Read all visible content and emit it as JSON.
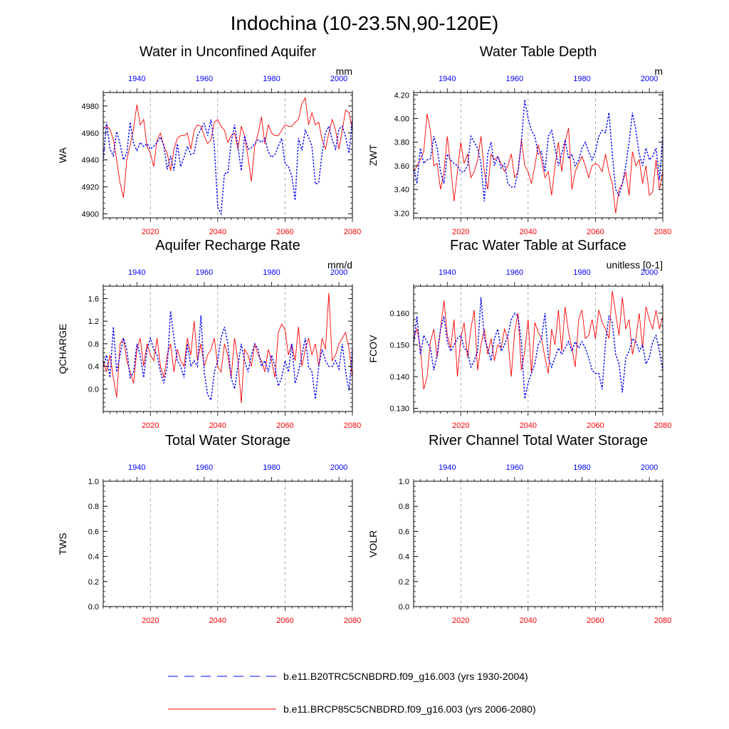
{
  "figure": {
    "title": "Indochina (10-23.5N,90-120E)",
    "colors": {
      "series_a": "#0000ff",
      "series_b": "#ff0000",
      "top_axis": "#0000ff",
      "bottom_axis": "#ff0000",
      "axis": "#000000",
      "vgrid": "#999999"
    },
    "legend": {
      "series_a_label": "b.e11.B20TRC5CNBDRD.f09_g16.003 (yrs 1930-2004)",
      "series_b_label": "b.e11.BRCP85C5CNBDRD.f09_g16.003 (yrs 2006-2080)"
    }
  },
  "chart_data": [
    {
      "id": "WA",
      "type": "line",
      "title": "Water in Unconfined Aquifer",
      "ylabel": "WA",
      "units": "mm",
      "ylim": [
        4897,
        4990
      ],
      "yticks": [
        4900,
        4920,
        4940,
        4960,
        4980
      ],
      "ytick_labels": [
        "4900",
        "4920",
        "4940",
        "4960",
        "4980"
      ],
      "x_bottom_ticks": [
        2020,
        2040,
        2060,
        2080
      ],
      "x_top_ticks": [
        1940,
        1960,
        1980,
        2000
      ],
      "xlim_bottom": [
        2006,
        2080
      ],
      "series_a_values": [
        4939,
        4968,
        4948,
        4943,
        4961,
        4952,
        4940,
        4945,
        4968,
        4952,
        4947,
        4953,
        4950,
        4952,
        4948,
        4950,
        4953,
        4957,
        4951,
        4933,
        4943,
        4932,
        4952,
        4935,
        4942,
        4950,
        4944,
        4945,
        4958,
        4963,
        4967,
        4958,
        4970,
        4950,
        4905,
        4900,
        4930,
        4930,
        4953,
        4966,
        4950,
        4932,
        4958,
        4948,
        4949,
        4952,
        4955,
        4953,
        4956,
        4946,
        4942,
        4944,
        4950,
        4956,
        4937,
        4935,
        4928,
        4910,
        4956,
        4947,
        4962,
        4957,
        4950,
        4922,
        4923,
        4945,
        4960,
        4965,
        4955,
        4948,
        4963,
        4965,
        4957,
        4945,
        4970
      ],
      "series_b_values": [
        4963,
        4965,
        4963,
        4955,
        4940,
        4923,
        4912,
        4940,
        4951,
        4963,
        4981,
        4966,
        4970,
        4950,
        4945,
        4935,
        4955,
        4960,
        4950,
        4945,
        4932,
        4948,
        4956,
        4958,
        4958,
        4960,
        4948,
        4962,
        4966,
        4965,
        4958,
        4952,
        4955,
        4968,
        4970,
        4965,
        4962,
        4953,
        4958,
        4960,
        4948,
        4965,
        4958,
        4942,
        4924,
        4950,
        4960,
        4972,
        4952,
        4966,
        4960,
        4958,
        4958,
        4962,
        4966,
        4965,
        4965,
        4968,
        4970,
        4982,
        4986,
        4966,
        4975,
        4966,
        4968,
        4955,
        4948,
        4960,
        4970,
        4962,
        4948,
        4962,
        4977,
        4975,
        4962
      ]
    },
    {
      "id": "ZWT",
      "type": "line",
      "title": "Water Table Depth",
      "ylabel": "ZWT",
      "units": "m",
      "ylim": [
        3.16,
        4.22
      ],
      "yticks": [
        3.2,
        3.4,
        3.6,
        3.8,
        4.0,
        4.2
      ],
      "ytick_labels": [
        "3.20",
        "3.40",
        "3.60",
        "3.80",
        "4.00",
        "4.20"
      ],
      "x_bottom_ticks": [
        2020,
        2040,
        2060,
        2080
      ],
      "x_top_ticks": [
        1940,
        1960,
        1980,
        2000
      ],
      "xlim_bottom": [
        2006,
        2080
      ],
      "series_a_values": [
        3.6,
        3.45,
        3.75,
        3.62,
        3.65,
        3.66,
        3.85,
        3.75,
        3.55,
        3.45,
        3.7,
        3.65,
        3.62,
        3.6,
        3.55,
        3.55,
        3.6,
        3.85,
        3.8,
        3.75,
        3.62,
        3.3,
        3.7,
        3.8,
        3.6,
        3.68,
        3.58,
        3.62,
        3.45,
        3.42,
        3.42,
        3.55,
        3.8,
        4.16,
        4.0,
        3.9,
        3.85,
        3.7,
        3.72,
        3.55,
        3.85,
        3.9,
        3.75,
        3.6,
        3.7,
        3.82,
        3.66,
        3.7,
        3.6,
        3.65,
        3.75,
        3.8,
        3.72,
        3.65,
        3.72,
        3.85,
        3.9,
        3.88,
        4.05,
        3.7,
        3.4,
        3.35,
        3.45,
        3.6,
        3.8,
        4.05,
        3.9,
        3.7,
        3.6,
        3.75,
        3.65,
        3.68,
        3.75,
        3.48,
        3.85
      ],
      "series_b_values": [
        3.55,
        3.6,
        3.65,
        3.72,
        4.04,
        3.9,
        3.6,
        3.62,
        3.4,
        3.55,
        3.85,
        3.6,
        3.3,
        3.55,
        3.8,
        3.62,
        3.7,
        3.5,
        3.55,
        3.65,
        3.85,
        3.55,
        3.4,
        3.7,
        3.65,
        3.68,
        3.62,
        3.55,
        3.6,
        3.7,
        3.5,
        3.55,
        3.82,
        3.6,
        3.55,
        3.45,
        3.6,
        3.78,
        3.65,
        3.5,
        3.55,
        3.35,
        3.6,
        3.8,
        3.55,
        3.8,
        3.92,
        3.4,
        3.55,
        3.62,
        3.68,
        3.6,
        3.5,
        3.6,
        3.62,
        3.6,
        3.55,
        3.7,
        3.55,
        3.45,
        3.2,
        3.4,
        3.45,
        3.55,
        3.35,
        3.72,
        3.6,
        3.65,
        3.45,
        3.6,
        3.35,
        3.38,
        3.65,
        3.4,
        3.55
      ]
    },
    {
      "id": "QCHARGE",
      "type": "line",
      "title": "Aquifer Recharge Rate",
      "ylabel": "QCHARGE",
      "units": "mm/d",
      "ylim": [
        -0.4,
        1.82
      ],
      "yticks": [
        0.0,
        0.4,
        0.8,
        1.2,
        1.6
      ],
      "ytick_labels": [
        "0.0",
        "0.4",
        "0.8",
        "1.2",
        "1.6"
      ],
      "x_bottom_ticks": [
        2020,
        2040,
        2060,
        2080
      ],
      "x_top_ticks": [
        1940,
        1960,
        1980,
        2000
      ],
      "xlim_bottom": [
        2006,
        2080
      ],
      "series_a_values": [
        0.4,
        0.6,
        0.2,
        1.1,
        0.3,
        0.6,
        0.9,
        0.7,
        0.2,
        0.3,
        0.8,
        0.6,
        0.2,
        0.7,
        0.9,
        0.7,
        0.6,
        0.3,
        0.1,
        0.4,
        1.38,
        0.9,
        0.5,
        0.4,
        0.2,
        0.8,
        0.4,
        0.5,
        0.4,
        1.3,
        0.3,
        -0.1,
        -0.2,
        0.3,
        0.5,
        0.9,
        1.1,
        0.8,
        0.2,
        0.0,
        0.4,
        0.8,
        0.5,
        0.3,
        0.6,
        0.8,
        0.7,
        0.4,
        0.5,
        0.3,
        0.6,
        0.4,
        0.05,
        0.2,
        0.5,
        0.3,
        0.8,
        0.1,
        0.3,
        0.6,
        0.9,
        0.4,
        0.3,
        -0.18,
        0.4,
        0.7,
        0.5,
        0.4,
        0.4,
        0.5,
        0.35,
        0.8,
        0.3,
        -0.03,
        0.7
      ],
      "series_b_values": [
        0.5,
        0.3,
        0.6,
        0.2,
        -0.15,
        0.8,
        0.9,
        0.5,
        0.3,
        0.1,
        0.7,
        0.9,
        0.4,
        0.8,
        0.6,
        0.5,
        0.9,
        0.4,
        0.2,
        0.6,
        0.8,
        0.3,
        0.7,
        0.5,
        0.4,
        0.9,
        0.6,
        1.2,
        0.5,
        0.8,
        0.4,
        0.6,
        0.7,
        0.9,
        0.4,
        0.3,
        0.8,
        0.6,
        0.2,
        0.9,
        0.5,
        -0.25,
        0.7,
        0.6,
        0.4,
        0.8,
        0.6,
        0.5,
        0.3,
        0.7,
        0.5,
        0.2,
        1.0,
        1.15,
        1.05,
        0.6,
        0.8,
        0.5,
        1.1,
        0.4,
        0.7,
        0.9,
        0.6,
        0.8,
        0.4,
        0.9,
        0.7,
        1.7,
        0.5,
        0.6,
        0.8,
        0.9,
        1.0,
        0.7,
        0.2
      ]
    },
    {
      "id": "FCOV",
      "type": "line",
      "title": "Frac Water Table at Surface",
      "ylabel": "FCOV",
      "units": "unitless [0-1]",
      "ylim": [
        0.129,
        0.1685
      ],
      "yticks": [
        0.13,
        0.14,
        0.15,
        0.16
      ],
      "ytick_labels": [
        "0.130",
        "0.140",
        "0.150",
        "0.160"
      ],
      "x_bottom_ticks": [
        2020,
        2040,
        2060,
        2080
      ],
      "x_top_ticks": [
        1940,
        1960,
        1980,
        2000
      ],
      "xlim_bottom": [
        2006,
        2080
      ],
      "series_a_values": [
        0.15,
        0.159,
        0.147,
        0.153,
        0.151,
        0.149,
        0.142,
        0.147,
        0.155,
        0.159,
        0.151,
        0.148,
        0.15,
        0.152,
        0.153,
        0.149,
        0.148,
        0.143,
        0.145,
        0.148,
        0.165,
        0.152,
        0.149,
        0.145,
        0.152,
        0.155,
        0.148,
        0.15,
        0.153,
        0.158,
        0.16,
        0.159,
        0.151,
        0.133,
        0.138,
        0.141,
        0.144,
        0.15,
        0.152,
        0.16,
        0.146,
        0.143,
        0.146,
        0.149,
        0.147,
        0.149,
        0.151,
        0.148,
        0.151,
        0.149,
        0.151,
        0.149,
        0.146,
        0.142,
        0.141,
        0.141,
        0.136,
        0.151,
        0.159,
        0.157,
        0.147,
        0.144,
        0.135,
        0.146,
        0.148,
        0.152,
        0.151,
        0.148,
        0.15,
        0.144,
        0.146,
        0.151,
        0.153,
        0.148,
        0.142
      ],
      "series_b_values": [
        0.152,
        0.155,
        0.149,
        0.136,
        0.14,
        0.151,
        0.155,
        0.146,
        0.155,
        0.164,
        0.153,
        0.149,
        0.158,
        0.14,
        0.152,
        0.157,
        0.146,
        0.155,
        0.161,
        0.142,
        0.15,
        0.155,
        0.147,
        0.152,
        0.145,
        0.15,
        0.149,
        0.155,
        0.152,
        0.14,
        0.154,
        0.16,
        0.142,
        0.148,
        0.158,
        0.141,
        0.157,
        0.154,
        0.152,
        0.146,
        0.141,
        0.155,
        0.15,
        0.161,
        0.148,
        0.162,
        0.154,
        0.149,
        0.143,
        0.158,
        0.161,
        0.152,
        0.153,
        0.158,
        0.152,
        0.161,
        0.157,
        0.155,
        0.152,
        0.167,
        0.16,
        0.153,
        0.165,
        0.155,
        0.158,
        0.147,
        0.152,
        0.16,
        0.149,
        0.162,
        0.158,
        0.155,
        0.161,
        0.155,
        0.159
      ]
    },
    {
      "id": "TWS",
      "type": "line",
      "title": "Total Water Storage",
      "ylabel": "TWS",
      "units": "",
      "ylim": [
        0.0,
        1.0
      ],
      "yticks": [
        0.0,
        0.2,
        0.4,
        0.6,
        0.8,
        1.0
      ],
      "ytick_labels": [
        "0.0",
        "0.2",
        "0.4",
        "0.6",
        "0.8",
        "1.0"
      ],
      "x_bottom_ticks": [
        2020,
        2040,
        2060,
        2080
      ],
      "x_top_ticks": [
        1940,
        1960,
        1980,
        2000
      ],
      "xlim_bottom": [
        2006,
        2080
      ],
      "series_a_values": [],
      "series_b_values": []
    },
    {
      "id": "VOLR",
      "type": "line",
      "title": "River Channel Total Water Storage",
      "ylabel": "VOLR",
      "units": "",
      "ylim": [
        0.0,
        1.0
      ],
      "yticks": [
        0.0,
        0.2,
        0.4,
        0.6,
        0.8,
        1.0
      ],
      "ytick_labels": [
        "0.0",
        "0.2",
        "0.4",
        "0.6",
        "0.8",
        "1.0"
      ],
      "x_bottom_ticks": [
        2020,
        2040,
        2060,
        2080
      ],
      "x_top_ticks": [
        1940,
        1960,
        1980,
        2000
      ],
      "xlim_bottom": [
        2006,
        2080
      ],
      "series_a_values": [],
      "series_b_values": []
    }
  ]
}
